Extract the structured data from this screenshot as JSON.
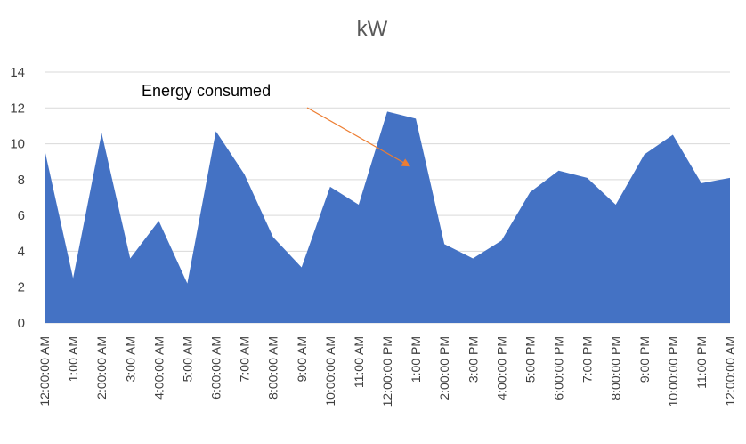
{
  "chart_data": {
    "type": "area",
    "title": "kW",
    "xlabel": "",
    "ylabel": "",
    "ylim": [
      0,
      14
    ],
    "yticks": [
      0,
      2,
      4,
      6,
      8,
      10,
      12,
      14
    ],
    "grid": true,
    "legend": "none",
    "categories": [
      "12:00:00 AM",
      "1:00 AM",
      "2:00:00 AM",
      "3:00 AM",
      "4:00:00 AM",
      "5:00 AM",
      "6:00:00 AM",
      "7:00 AM",
      "8:00:00 AM",
      "9:00 AM",
      "10:00:00 AM",
      "11:00 AM",
      "12:00:00 PM",
      "1:00 PM",
      "2:00:00 PM",
      "3:00 PM",
      "4:00:00 PM",
      "5:00 PM",
      "6:00:00 PM",
      "7:00 PM",
      "8:00:00 PM",
      "9:00 PM",
      "10:00:00 PM",
      "11:00 PM",
      "12:00:00 AM"
    ],
    "series": [
      {
        "color": "#4472c4",
        "values": [
          9.7,
          2.5,
          10.6,
          3.6,
          5.7,
          2.2,
          10.7,
          8.3,
          4.8,
          3.1,
          7.6,
          6.6,
          11.8,
          11.4,
          4.4,
          3.6,
          4.6,
          7.3,
          8.5,
          8.1,
          6.6,
          9.4,
          10.5,
          7.8,
          8.1
        ]
      }
    ],
    "annotations": [
      {
        "text": "Energy consumed",
        "arrow_color": "#ed7d31",
        "points_to_category": "1:00 PM"
      }
    ]
  }
}
